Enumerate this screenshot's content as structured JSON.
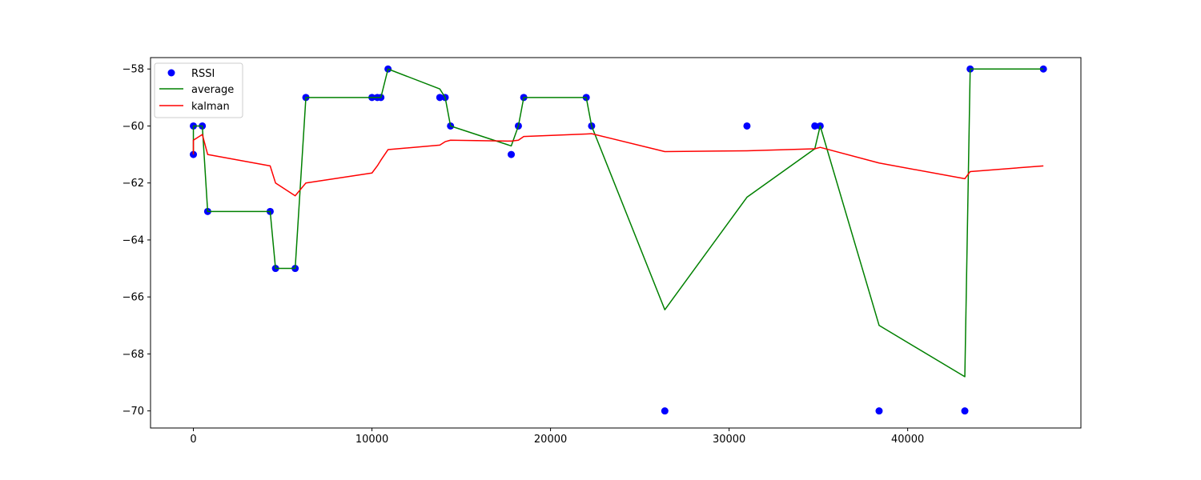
{
  "colors": {
    "rssi": "#0000ff",
    "average": "#008000",
    "kalman": "#ff0000",
    "axes": "#000000",
    "legend_border": "#cccccc"
  },
  "legend": {
    "placement": "top-left",
    "entries": [
      {
        "label": "RSSI",
        "marker": "dot",
        "color": "#0000ff"
      },
      {
        "label": "average",
        "marker": "line",
        "color": "#008000"
      },
      {
        "label": "kalman",
        "marker": "line",
        "color": "#ff0000"
      }
    ]
  },
  "chart_data": {
    "type": "line",
    "title": "",
    "xlabel": "",
    "ylabel": "",
    "xlim": [
      -2400,
      49700
    ],
    "ylim": [
      -70.6,
      -57.6
    ],
    "grid": false,
    "x_ticks": [
      {
        "value": 0,
        "label": "0"
      },
      {
        "value": 10000,
        "label": "10000"
      },
      {
        "value": 20000,
        "label": "20000"
      },
      {
        "value": 30000,
        "label": "30000"
      },
      {
        "value": 40000,
        "label": "40000"
      }
    ],
    "y_ticks": [
      {
        "value": -58,
        "label": "−58"
      },
      {
        "value": -60,
        "label": "−60"
      },
      {
        "value": -62,
        "label": "−62"
      },
      {
        "value": -64,
        "label": "−64"
      },
      {
        "value": -66,
        "label": "−66"
      },
      {
        "value": -68,
        "label": "−68"
      },
      {
        "value": -70,
        "label": "−70"
      }
    ],
    "series": [
      {
        "name": "RSSI",
        "style": "scatter",
        "points": [
          [
            0,
            -61
          ],
          [
            0,
            -60
          ],
          [
            500,
            -60
          ],
          [
            800,
            -63
          ],
          [
            4300,
            -63
          ],
          [
            4600,
            -65
          ],
          [
            5700,
            -65
          ],
          [
            6300,
            -59
          ],
          [
            10000,
            -59
          ],
          [
            10300,
            -59
          ],
          [
            10500,
            -59
          ],
          [
            10900,
            -58
          ],
          [
            13800,
            -59
          ],
          [
            14100,
            -59
          ],
          [
            14400,
            -60
          ],
          [
            17800,
            -61
          ],
          [
            18200,
            -60
          ],
          [
            18500,
            -59
          ],
          [
            22000,
            -59
          ],
          [
            22300,
            -60
          ],
          [
            26400,
            -70
          ],
          [
            31000,
            -60
          ],
          [
            34800,
            -60
          ],
          [
            35100,
            -60
          ],
          [
            38400,
            -70
          ],
          [
            43200,
            -70
          ],
          [
            43500,
            -58
          ],
          [
            47600,
            -58
          ]
        ]
      },
      {
        "name": "average",
        "style": "line",
        "points": [
          [
            0,
            -61
          ],
          [
            0,
            -60
          ],
          [
            500,
            -60
          ],
          [
            800,
            -63
          ],
          [
            4300,
            -63
          ],
          [
            4600,
            -65
          ],
          [
            5700,
            -65
          ],
          [
            6300,
            -59
          ],
          [
            10000,
            -59
          ],
          [
            10300,
            -59
          ],
          [
            10500,
            -59
          ],
          [
            10900,
            -58
          ],
          [
            13800,
            -58.7
          ],
          [
            14100,
            -59
          ],
          [
            14400,
            -60
          ],
          [
            17800,
            -60.7
          ],
          [
            18200,
            -60
          ],
          [
            18500,
            -59
          ],
          [
            22000,
            -59
          ],
          [
            22300,
            -60
          ],
          [
            26400,
            -66.45
          ],
          [
            31000,
            -62.5
          ],
          [
            34800,
            -60.8
          ],
          [
            35100,
            -60
          ],
          [
            38400,
            -67
          ],
          [
            43200,
            -68.8
          ],
          [
            43500,
            -58
          ],
          [
            47600,
            -58
          ]
        ]
      },
      {
        "name": "kalman",
        "style": "line",
        "points": [
          [
            0,
            -61
          ],
          [
            0,
            -60.5
          ],
          [
            500,
            -60.3
          ],
          [
            800,
            -61
          ],
          [
            4300,
            -61.4
          ],
          [
            4600,
            -62
          ],
          [
            5700,
            -62.45
          ],
          [
            6300,
            -62
          ],
          [
            10000,
            -61.65
          ],
          [
            10300,
            -61.4
          ],
          [
            10500,
            -61.2
          ],
          [
            10900,
            -60.83
          ],
          [
            13800,
            -60.67
          ],
          [
            14100,
            -60.55
          ],
          [
            14400,
            -60.5
          ],
          [
            17800,
            -60.53
          ],
          [
            18200,
            -60.5
          ],
          [
            18500,
            -60.37
          ],
          [
            22000,
            -60.28
          ],
          [
            22300,
            -60.27
          ],
          [
            26400,
            -60.9
          ],
          [
            31000,
            -60.87
          ],
          [
            34800,
            -60.8
          ],
          [
            35100,
            -60.75
          ],
          [
            38400,
            -61.3
          ],
          [
            43200,
            -61.85
          ],
          [
            43500,
            -61.6
          ],
          [
            47600,
            -61.4
          ]
        ]
      }
    ]
  }
}
